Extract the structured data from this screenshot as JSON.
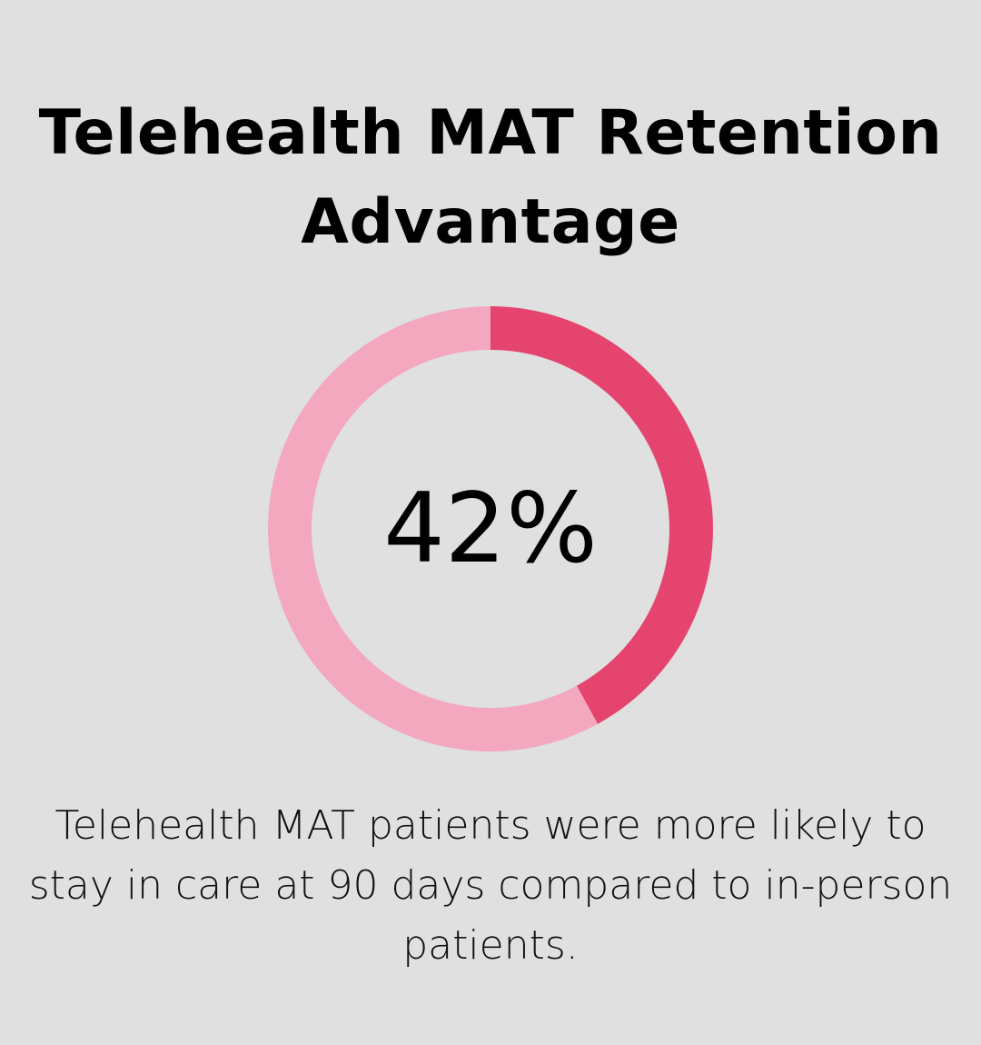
{
  "chart_data": {
    "type": "pie",
    "variant": "donut",
    "title": "Telehealth MAT Retention Advantage",
    "center_label": "42%",
    "slices": [
      {
        "value": 42,
        "color": "#e5446f"
      },
      {
        "value": 58,
        "color": "#f3a8bf"
      }
    ],
    "start": "top",
    "direction": "clockwise"
  },
  "description": "Telehealth MAT patients were more likely to stay in care at 90 days compared to in-person patients.",
  "colors": {
    "background": "#dfe0df"
  }
}
